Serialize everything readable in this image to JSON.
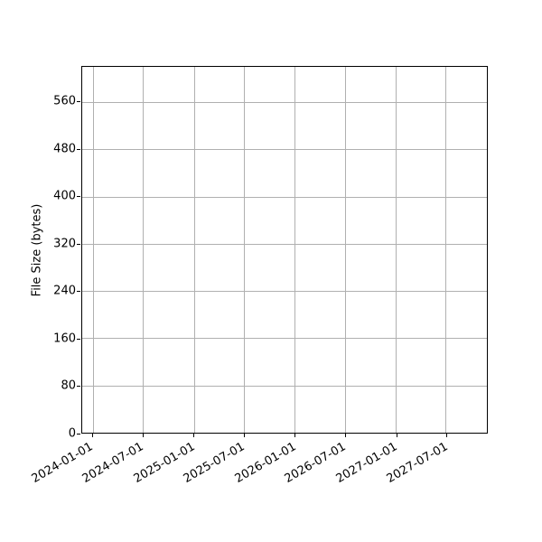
{
  "figure": {
    "background": "#ffffff"
  },
  "chart_data": {
    "type": "line",
    "title": "",
    "xlabel": "",
    "ylabel": "File Size (bytes)",
    "x_tick_labels": [
      "2024-01-01",
      "2024-07-01",
      "2025-01-01",
      "2025-07-01",
      "2026-01-01",
      "2026-07-01",
      "2027-01-01",
      "2027-07-01"
    ],
    "x_tick_rotation_deg": 30,
    "y_ticks": [
      0,
      80,
      160,
      240,
      320,
      400,
      480,
      560
    ],
    "xlim": [
      "2023-11-24",
      "2027-11-27"
    ],
    "ylim": [
      0,
      620
    ],
    "grid": true,
    "legend": false,
    "series": [],
    "colors": {
      "grid": "#b0b0b0",
      "spine": "#000000",
      "tick": "#000000",
      "tick_label": "#000000",
      "background": "#ffffff"
    }
  }
}
